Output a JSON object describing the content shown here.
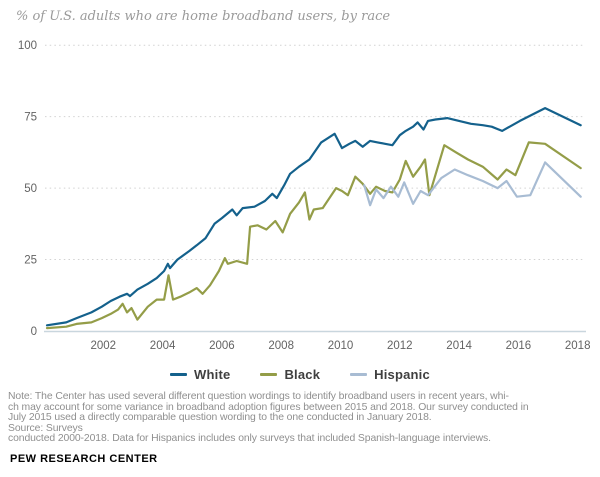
{
  "header": {
    "title": "% of U.S. adults who are home broadband users, by race"
  },
  "chart_data": {
    "type": "line",
    "title": "% of U.S. adults who are home broadband users, by race",
    "xlabel": "",
    "ylabel": "%",
    "x_axis": {
      "ticks": [
        2002,
        2004,
        2006,
        2008,
        2010,
        2012,
        2014,
        2016,
        2018
      ],
      "range": [
        2000,
        2018.3
      ]
    },
    "y_axis": {
      "ticks": [
        0,
        25,
        50,
        75,
        100
      ],
      "range": [
        0,
        100
      ]
    },
    "grid": "dotted-horizontal",
    "legend_position": "bottom",
    "series": [
      {
        "name": "White",
        "color": "#14618c",
        "points": [
          [
            2000.1,
            2
          ],
          [
            2000.75,
            3
          ],
          [
            2001.1,
            4.5
          ],
          [
            2001.6,
            6.5
          ],
          [
            2001.95,
            8.5
          ],
          [
            2002.25,
            10.5
          ],
          [
            2002.55,
            12
          ],
          [
            2002.8,
            13
          ],
          [
            2002.9,
            12.2
          ],
          [
            2003.15,
            14.5
          ],
          [
            2003.5,
            16.5
          ],
          [
            2003.8,
            18.5
          ],
          [
            2004.05,
            21
          ],
          [
            2004.18,
            23.5
          ],
          [
            2004.25,
            22
          ],
          [
            2004.5,
            25
          ],
          [
            2004.9,
            28
          ],
          [
            2005.15,
            30
          ],
          [
            2005.45,
            32.5
          ],
          [
            2005.75,
            37.5
          ],
          [
            2006.0,
            39.5
          ],
          [
            2006.35,
            42.5
          ],
          [
            2006.5,
            40.5
          ],
          [
            2006.7,
            43
          ],
          [
            2007.1,
            43.5
          ],
          [
            2007.45,
            45.5
          ],
          [
            2007.7,
            48
          ],
          [
            2007.85,
            46.5
          ],
          [
            2008.1,
            51
          ],
          [
            2008.3,
            55
          ],
          [
            2008.6,
            57.5
          ],
          [
            2008.95,
            60
          ],
          [
            2009.35,
            66
          ],
          [
            2009.8,
            69
          ],
          [
            2010.05,
            64
          ],
          [
            2010.3,
            65.5
          ],
          [
            2010.5,
            66.5
          ],
          [
            2010.75,
            64.5
          ],
          [
            2011.0,
            66.5
          ],
          [
            2011.25,
            66
          ],
          [
            2011.5,
            65.5
          ],
          [
            2011.75,
            65
          ],
          [
            2012.0,
            68.5
          ],
          [
            2012.2,
            70
          ],
          [
            2012.45,
            71.5
          ],
          [
            2012.6,
            73
          ],
          [
            2012.8,
            70.5
          ],
          [
            2012.95,
            73.5
          ],
          [
            2013.2,
            74
          ],
          [
            2013.6,
            74.5
          ],
          [
            2014.0,
            73.5
          ],
          [
            2014.4,
            72.5
          ],
          [
            2014.8,
            72
          ],
          [
            2015.1,
            71.5
          ],
          [
            2015.45,
            70
          ],
          [
            2016.05,
            73.5
          ],
          [
            2016.9,
            78
          ],
          [
            2018.1,
            72
          ]
        ]
      },
      {
        "name": "Black",
        "color": "#949d48",
        "points": [
          [
            2000.1,
            1
          ],
          [
            2000.75,
            1.5
          ],
          [
            2001.1,
            2.5
          ],
          [
            2001.6,
            3
          ],
          [
            2001.95,
            4.5
          ],
          [
            2002.25,
            6
          ],
          [
            2002.5,
            7.5
          ],
          [
            2002.65,
            9.5
          ],
          [
            2002.8,
            6.5
          ],
          [
            2002.95,
            8
          ],
          [
            2003.15,
            4
          ],
          [
            2003.5,
            8.5
          ],
          [
            2003.8,
            11
          ],
          [
            2004.05,
            11
          ],
          [
            2004.2,
            19.5
          ],
          [
            2004.35,
            11
          ],
          [
            2004.6,
            12
          ],
          [
            2004.9,
            13.5
          ],
          [
            2005.15,
            15
          ],
          [
            2005.35,
            13
          ],
          [
            2005.6,
            16
          ],
          [
            2005.9,
            21
          ],
          [
            2006.1,
            25.5
          ],
          [
            2006.2,
            23.5
          ],
          [
            2006.5,
            24.5
          ],
          [
            2006.85,
            23.5
          ],
          [
            2006.95,
            36.5
          ],
          [
            2007.2,
            37
          ],
          [
            2007.5,
            35.5
          ],
          [
            2007.8,
            38.5
          ],
          [
            2008.05,
            34.5
          ],
          [
            2008.3,
            41
          ],
          [
            2008.6,
            45
          ],
          [
            2008.8,
            48.5
          ],
          [
            2008.95,
            39
          ],
          [
            2009.1,
            42.5
          ],
          [
            2009.4,
            43
          ],
          [
            2009.85,
            50
          ],
          [
            2010.05,
            49
          ],
          [
            2010.25,
            47.5
          ],
          [
            2010.5,
            54
          ],
          [
            2010.75,
            51.5
          ],
          [
            2011.0,
            48
          ],
          [
            2011.2,
            50.5
          ],
          [
            2011.5,
            49
          ],
          [
            2011.75,
            48.5
          ],
          [
            2012.0,
            53
          ],
          [
            2012.2,
            59.5
          ],
          [
            2012.45,
            54
          ],
          [
            2012.7,
            57.5
          ],
          [
            2012.85,
            60
          ],
          [
            2013.0,
            47.5
          ],
          [
            2013.5,
            65
          ],
          [
            2013.9,
            62.5
          ],
          [
            2014.3,
            60
          ],
          [
            2014.8,
            57.5
          ],
          [
            2015.3,
            53
          ],
          [
            2015.6,
            56.5
          ],
          [
            2015.9,
            54.5
          ],
          [
            2016.35,
            66
          ],
          [
            2016.9,
            65.5
          ],
          [
            2018.1,
            57
          ]
        ]
      },
      {
        "name": "Hispanic",
        "color": "#a8bcd3",
        "points": [
          [
            2010.8,
            51
          ],
          [
            2011.0,
            44
          ],
          [
            2011.2,
            49.5
          ],
          [
            2011.45,
            46.5
          ],
          [
            2011.7,
            50.5
          ],
          [
            2011.95,
            47
          ],
          [
            2012.15,
            52
          ],
          [
            2012.45,
            44.5
          ],
          [
            2012.7,
            49
          ],
          [
            2012.95,
            47.5
          ],
          [
            2013.4,
            53.5
          ],
          [
            2013.85,
            56.5
          ],
          [
            2014.3,
            54.5
          ],
          [
            2014.8,
            52.5
          ],
          [
            2015.3,
            50
          ],
          [
            2015.6,
            52.5
          ],
          [
            2015.95,
            47
          ],
          [
            2016.4,
            47.5
          ],
          [
            2016.9,
            59
          ],
          [
            2018.1,
            47
          ]
        ]
      }
    ]
  },
  "note": {
    "lines": [
      "Note: The Center has used several different question wordings to identify broadband users in recent years, whi-",
      "ch may account for some variance in broadband adoption figures between 2015 and 2018. Our survey conducted in",
      "July 2015 used a directly comparable question wording to the one conducted in January 2018.",
      "Source: Surveys",
      " conducted 2000-2018. Data for Hispanics includes only surveys that included Spanish-language interviews."
    ]
  },
  "footer": {
    "label": "PEW RESEARCH CENTER"
  },
  "colors": {
    "axis_line": "#c9d6de",
    "gridline": "#d2d2d2",
    "tick_text": "#636363",
    "title_text": "#9a9a9a",
    "note_text": "#8f8f8f"
  }
}
